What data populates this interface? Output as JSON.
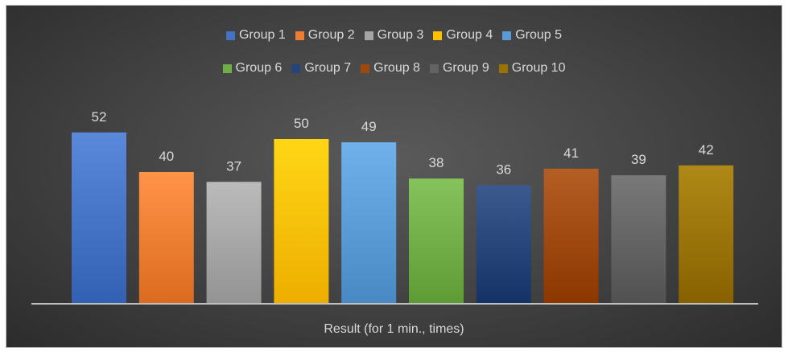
{
  "chart_data": {
    "type": "bar",
    "categories": [
      "Result (for 1 min., times)"
    ],
    "xlabel": "Result (for 1 min., times)",
    "ylabel": "",
    "title": "",
    "ylim": [
      0,
      55
    ],
    "grid": false,
    "legend_position": "top",
    "series": [
      {
        "name": "Group 1",
        "values": [
          52
        ],
        "color": "#4472C4"
      },
      {
        "name": "Group 2",
        "values": [
          40
        ],
        "color": "#ED7D31"
      },
      {
        "name": "Group 3",
        "values": [
          37
        ],
        "color": "#A5A5A5"
      },
      {
        "name": "Group 4",
        "values": [
          50
        ],
        "color": "#FFC000"
      },
      {
        "name": "Group 5",
        "values": [
          49
        ],
        "color": "#5B9BD5"
      },
      {
        "name": "Group 6",
        "values": [
          38
        ],
        "color": "#70AD47"
      },
      {
        "name": "Group 7",
        "values": [
          36
        ],
        "color": "#264478"
      },
      {
        "name": "Group 8",
        "values": [
          41
        ],
        "color": "#9E480E"
      },
      {
        "name": "Group 9",
        "values": [
          39
        ],
        "color": "#636363"
      },
      {
        "name": "Group 10",
        "values": [
          42
        ],
        "color": "#997300"
      }
    ]
  }
}
